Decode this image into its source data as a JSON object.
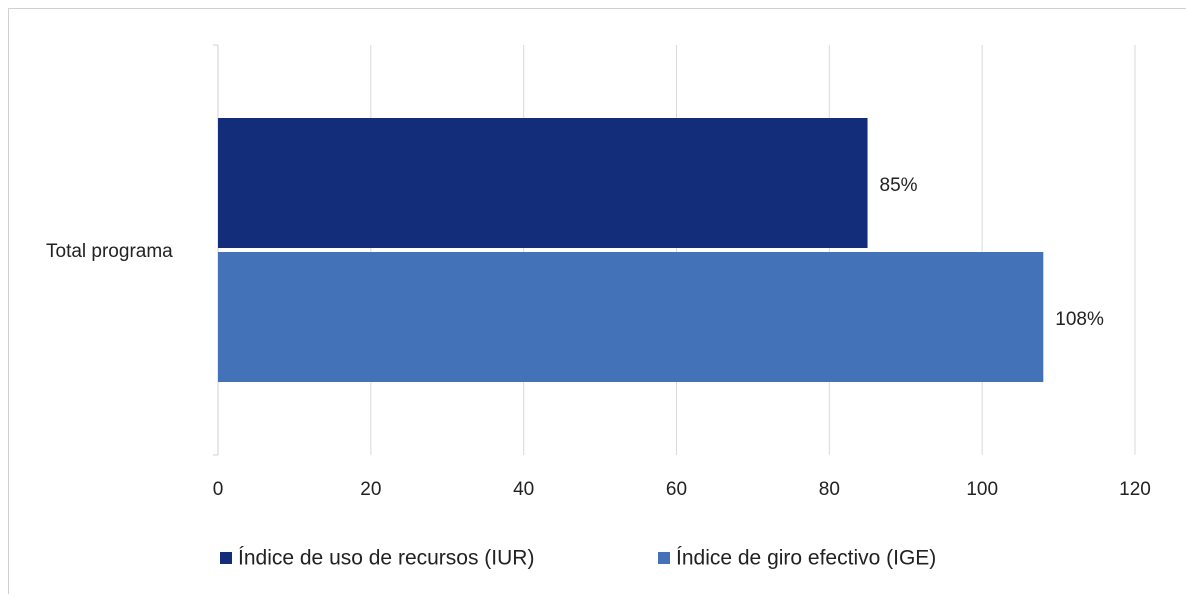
{
  "chart_data": {
    "type": "hbar",
    "categories": [
      "Total programa"
    ],
    "series": [
      {
        "name": "Índice de uso de recursos (IUR)",
        "color": "#142d7b",
        "values": [
          85
        ],
        "value_labels": [
          "85%"
        ]
      },
      {
        "name": "Índice de giro efectivo (IGE)",
        "color": "#4472b9",
        "values": [
          108
        ],
        "value_labels": [
          "108%"
        ]
      }
    ],
    "xlim": [
      0,
      120
    ],
    "xticks": [
      0,
      20,
      40,
      60,
      80,
      100,
      120
    ],
    "grid": true,
    "legend": "bottom"
  }
}
